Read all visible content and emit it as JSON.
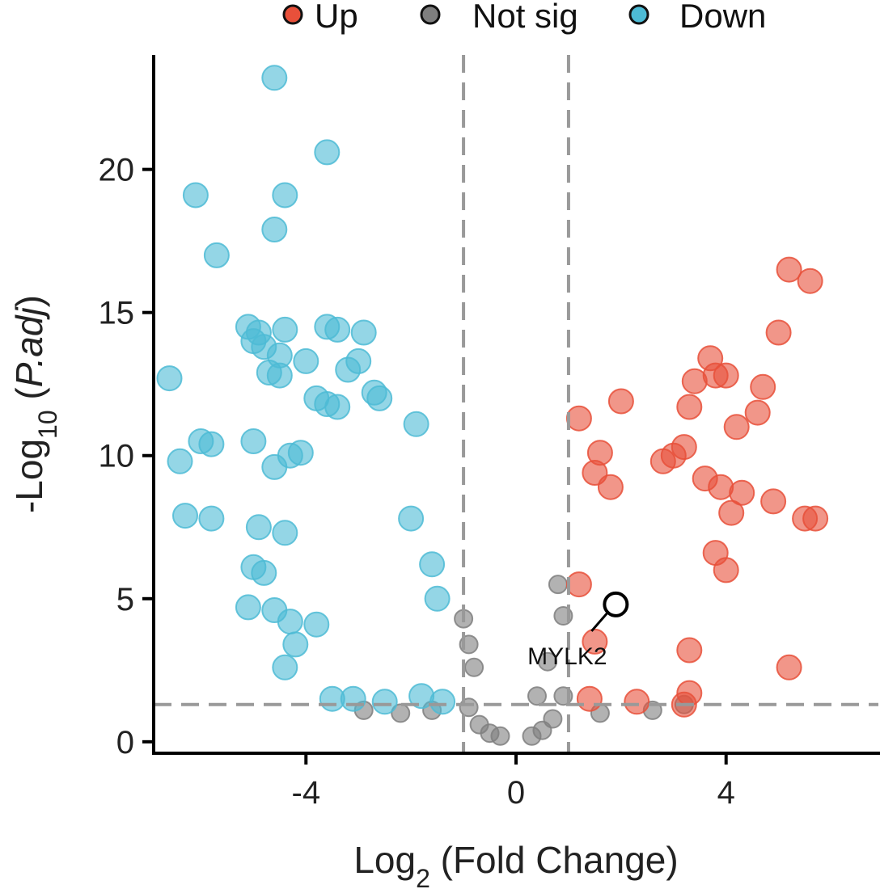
{
  "chart_data": {
    "type": "scatter",
    "title": "",
    "xlabel": {
      "base": "Log",
      "sub": "2",
      "rest": " (Fold Change)"
    },
    "ylabel": {
      "base": "-Log",
      "sub": "10",
      "open": " (",
      "italic": "P.adj",
      "close": ")"
    },
    "xlim": [
      -6.9,
      6.9
    ],
    "ylim": [
      -0.4,
      24
    ],
    "xticks": [
      -4,
      0,
      4
    ],
    "xtick_labels": [
      "-4",
      "0",
      "4"
    ],
    "yticks": [
      0,
      5,
      10,
      15,
      20
    ],
    "ytick_labels": [
      "0",
      "5",
      "10",
      "15",
      "20"
    ],
    "grid": false,
    "legend": {
      "position": "top",
      "entries": [
        {
          "key": "up",
          "label": "Up",
          "color": "#E8503A"
        },
        {
          "key": "notsig",
          "label": "Not sig",
          "color": "#7F7F7F"
        },
        {
          "key": "down",
          "label": "Down",
          "color": "#4DBBD5"
        }
      ]
    },
    "thresholds": {
      "log2fc": [
        -1,
        1
      ],
      "neglog10_padj": 1.3
    },
    "series": [
      {
        "name": "Down",
        "color": "#4DBBD5",
        "points": [
          [
            -4.6,
            23.2
          ],
          [
            -3.6,
            20.6
          ],
          [
            -6.1,
            19.1
          ],
          [
            -4.4,
            19.1
          ],
          [
            -4.6,
            17.9
          ],
          [
            -5.7,
            17.0
          ],
          [
            -5.1,
            14.5
          ],
          [
            -4.9,
            14.3
          ],
          [
            -4.4,
            14.4
          ],
          [
            -3.6,
            14.5
          ],
          [
            -3.4,
            14.4
          ],
          [
            -2.9,
            14.3
          ],
          [
            -5.0,
            14.0
          ],
          [
            -4.8,
            13.8
          ],
          [
            -4.5,
            13.5
          ],
          [
            -4.0,
            13.3
          ],
          [
            -3.0,
            13.3
          ],
          [
            -6.6,
            12.7
          ],
          [
            -4.7,
            12.9
          ],
          [
            -4.5,
            12.8
          ],
          [
            -3.2,
            13.0
          ],
          [
            -2.7,
            12.2
          ],
          [
            -2.6,
            12.0
          ],
          [
            -3.8,
            12.0
          ],
          [
            -3.6,
            11.8
          ],
          [
            -3.4,
            11.7
          ],
          [
            -1.9,
            11.1
          ],
          [
            -6.0,
            10.5
          ],
          [
            -5.8,
            10.4
          ],
          [
            -5.0,
            10.5
          ],
          [
            -6.4,
            9.8
          ],
          [
            -4.1,
            10.1
          ],
          [
            -4.3,
            10.0
          ],
          [
            -4.6,
            9.6
          ],
          [
            -6.3,
            7.9
          ],
          [
            -5.8,
            7.8
          ],
          [
            -4.9,
            7.5
          ],
          [
            -4.4,
            7.3
          ],
          [
            -5.0,
            6.1
          ],
          [
            -4.8,
            5.9
          ],
          [
            -5.1,
            4.7
          ],
          [
            -4.6,
            4.6
          ],
          [
            -4.3,
            4.2
          ],
          [
            -4.2,
            3.4
          ],
          [
            -3.8,
            4.1
          ],
          [
            -4.4,
            2.6
          ],
          [
            -2.0,
            7.8
          ],
          [
            -1.6,
            6.2
          ],
          [
            -1.5,
            5.0
          ],
          [
            -3.5,
            1.5
          ],
          [
            -3.1,
            1.5
          ],
          [
            -2.5,
            1.4
          ],
          [
            -1.8,
            1.6
          ],
          [
            -1.4,
            1.4
          ]
        ]
      },
      {
        "name": "Up",
        "color": "#E8503A",
        "points": [
          [
            5.2,
            16.5
          ],
          [
            5.6,
            16.1
          ],
          [
            5.0,
            14.3
          ],
          [
            3.7,
            13.4
          ],
          [
            3.4,
            12.6
          ],
          [
            3.8,
            12.8
          ],
          [
            4.0,
            12.8
          ],
          [
            4.7,
            12.4
          ],
          [
            3.3,
            11.7
          ],
          [
            4.6,
            11.5
          ],
          [
            4.2,
            11.0
          ],
          [
            1.2,
            11.3
          ],
          [
            2.0,
            11.9
          ],
          [
            1.6,
            10.1
          ],
          [
            3.2,
            10.3
          ],
          [
            3.0,
            10.0
          ],
          [
            2.8,
            9.8
          ],
          [
            1.5,
            9.4
          ],
          [
            1.8,
            8.9
          ],
          [
            3.6,
            9.2
          ],
          [
            3.9,
            8.9
          ],
          [
            4.3,
            8.7
          ],
          [
            4.9,
            8.4
          ],
          [
            4.1,
            8.0
          ],
          [
            5.5,
            7.8
          ],
          [
            5.7,
            7.8
          ],
          [
            3.8,
            6.6
          ],
          [
            4.0,
            6.0
          ],
          [
            3.3,
            3.2
          ],
          [
            5.2,
            2.6
          ],
          [
            3.3,
            1.7
          ],
          [
            1.4,
            1.5
          ],
          [
            2.3,
            1.4
          ],
          [
            3.2,
            1.3
          ],
          [
            1.2,
            5.5
          ],
          [
            1.5,
            3.5
          ]
        ]
      },
      {
        "name": "Not sig",
        "color": "#7F7F7F",
        "points": [
          [
            -0.5,
            0.3
          ],
          [
            -0.3,
            0.2
          ],
          [
            0.3,
            0.2
          ],
          [
            0.5,
            0.4
          ],
          [
            -0.7,
            0.6
          ],
          [
            0.7,
            0.8
          ],
          [
            -0.9,
            1.2
          ],
          [
            0.9,
            1.6
          ],
          [
            -1.0,
            4.3
          ],
          [
            -0.9,
            3.4
          ],
          [
            -0.8,
            2.6
          ],
          [
            0.8,
            5.5
          ],
          [
            0.9,
            4.4
          ],
          [
            0.6,
            2.8
          ],
          [
            0.4,
            1.6
          ],
          [
            -2.9,
            1.1
          ],
          [
            -2.2,
            1.0
          ],
          [
            -1.6,
            1.1
          ],
          [
            1.6,
            1.0
          ],
          [
            2.6,
            1.1
          ],
          [
            3.2,
            1.3
          ]
        ]
      }
    ],
    "annotation": {
      "label": "MYLK2",
      "x": 1.9,
      "y": 4.8
    }
  }
}
